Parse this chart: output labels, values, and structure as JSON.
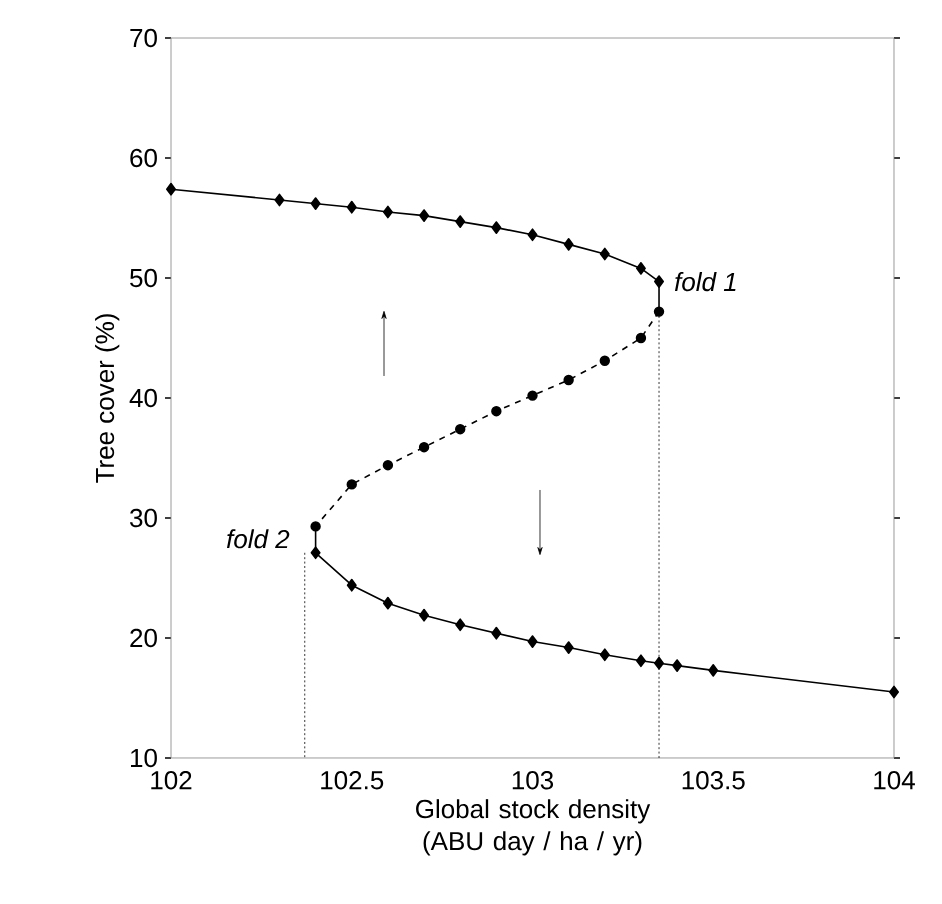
{
  "chart_data": {
    "type": "line",
    "xlabel": "Global stock density (ABU day / ha / yr)",
    "ylabel": "Tree cover (%)",
    "xlim": [
      102,
      104
    ],
    "ylim": [
      10,
      70
    ],
    "xticks": [
      102,
      102.5,
      103,
      103.5,
      104
    ],
    "yticks": [
      10,
      20,
      30,
      40,
      50,
      60,
      70
    ],
    "grid": false,
    "series": [
      {
        "color": "#000000",
        "marker": "diamond",
        "line_style": "solid",
        "x": [
          102.0,
          102.3,
          102.4,
          102.5,
          102.6,
          102.7,
          102.8,
          102.9,
          103.0,
          103.1,
          103.2,
          103.3,
          103.35
        ],
        "values": [
          57.4,
          56.5,
          56.2,
          55.9,
          55.5,
          55.2,
          54.7,
          54.2,
          53.6,
          52.8,
          52.0,
          50.8,
          49.7
        ]
      },
      {
        "color": "#000000",
        "marker": "circle",
        "line_style": "dashed",
        "x": [
          103.35,
          103.3,
          103.2,
          103.1,
          103.0,
          102.9,
          102.8,
          102.7,
          102.6,
          102.5,
          102.4
        ],
        "values": [
          47.2,
          45.0,
          43.1,
          41.5,
          40.2,
          38.9,
          37.4,
          35.9,
          34.4,
          32.8,
          29.3
        ]
      },
      {
        "color": "#000000",
        "marker": "diamond",
        "line_style": "solid",
        "x": [
          102.4,
          102.5,
          102.6,
          102.7,
          102.8,
          102.9,
          103.0,
          103.1,
          103.2,
          103.3,
          103.35,
          103.4,
          103.5,
          104.0
        ],
        "values": [
          27.1,
          24.4,
          22.9,
          21.9,
          21.1,
          20.4,
          19.7,
          19.2,
          18.6,
          18.1,
          17.9,
          17.7,
          17.3,
          15.5
        ]
      },
      {
        "color": "#000000",
        "marker": "none",
        "line_style": "solid",
        "x": [
          103.35,
          103.35
        ],
        "values": [
          49.7,
          47.2
        ]
      },
      {
        "color": "#000000",
        "marker": "none",
        "line_style": "solid",
        "x": [
          102.4,
          102.4
        ],
        "values": [
          29.3,
          27.1
        ]
      },
      {
        "color": "#000000",
        "marker": "none",
        "line_style": "dotted",
        "x": [
          103.35,
          103.35
        ],
        "values": [
          47.2,
          10
        ]
      },
      {
        "color": "#000000",
        "marker": "none",
        "line_style": "dotted",
        "x": [
          102.37,
          102.37
        ],
        "values": [
          27.1,
          10
        ]
      }
    ],
    "annotations": [
      {
        "text": "fold 1",
        "x": 103.35,
        "y": 49.7
      },
      {
        "text": "fold 2",
        "x": 102.37,
        "y": 27.1
      }
    ]
  }
}
